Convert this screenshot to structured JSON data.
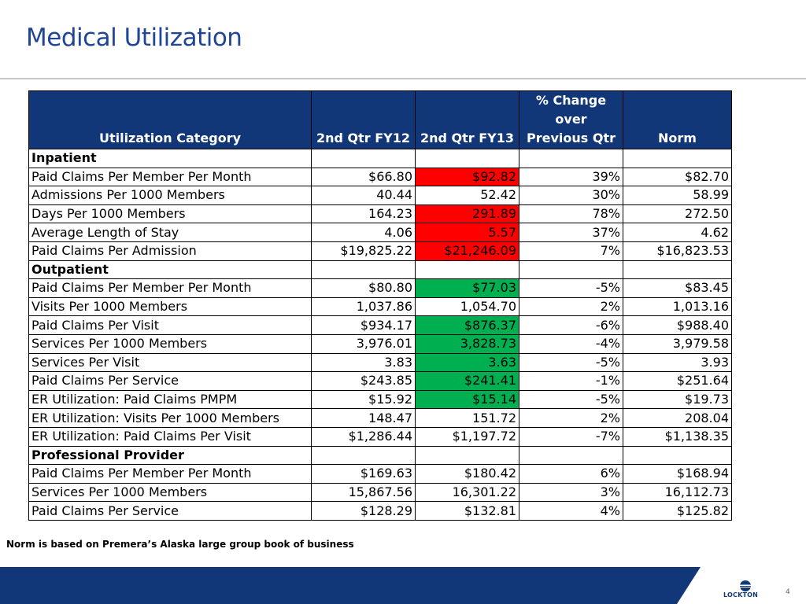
{
  "title": "Medical Utilization",
  "table": {
    "headers": {
      "category": "Utilization Category",
      "q12": "2nd Qtr FY12",
      "q13": "2nd Qtr FY13",
      "change_l1": "% Change",
      "change_l2": "over",
      "change_l3": "Previous Qtr",
      "norm": "Norm"
    },
    "rows": [
      {
        "label": "Inpatient",
        "section": true
      },
      {
        "label": "Paid Claims Per Member Per Month",
        "q12": "$66.80",
        "q13": "$92.82",
        "change": "39%",
        "norm": "$82.70",
        "highlight": "red"
      },
      {
        "label": "Admissions Per 1000 Members",
        "q12": "40.44",
        "q13": "52.42",
        "change": "30%",
        "norm": "58.99",
        "highlight": ""
      },
      {
        "label": "Days Per 1000 Members",
        "q12": "164.23",
        "q13": "291.89",
        "change": "78%",
        "norm": "272.50",
        "highlight": "red"
      },
      {
        "label": "Average Length of Stay",
        "q12": "4.06",
        "q13": "5.57",
        "change": "37%",
        "norm": "4.62",
        "highlight": "red"
      },
      {
        "label": "Paid Claims Per Admission",
        "q12": "$19,825.22",
        "q13": "$21,246.09",
        "change": "7%",
        "norm": "$16,823.53",
        "highlight": "red"
      },
      {
        "label": "Outpatient",
        "section": true
      },
      {
        "label": "Paid Claims Per Member Per Month",
        "q12": "$80.80",
        "q13": "$77.03",
        "change": "-5%",
        "norm": "$83.45",
        "highlight": "green"
      },
      {
        "label": "Visits Per 1000 Members",
        "q12": "1,037.86",
        "q13": "1,054.70",
        "change": "2%",
        "norm": "1,013.16",
        "highlight": ""
      },
      {
        "label": "Paid Claims Per Visit",
        "q12": "$934.17",
        "q13": "$876.37",
        "change": "-6%",
        "norm": "$988.40",
        "highlight": "green"
      },
      {
        "label": "Services Per 1000 Members",
        "q12": "3,976.01",
        "q13": "3,828.73",
        "change": "-4%",
        "norm": "3,979.58",
        "highlight": "green"
      },
      {
        "label": "Services Per Visit",
        "q12": "3.83",
        "q13": "3.63",
        "change": "-5%",
        "norm": "3.93",
        "highlight": "green"
      },
      {
        "label": "Paid Claims Per Service",
        "q12": "$243.85",
        "q13": "$241.41",
        "change": "-1%",
        "norm": "$251.64",
        "highlight": "green"
      },
      {
        "label": "ER Utilization: Paid Claims PMPM",
        "q12": "$15.92",
        "q13": "$15.14",
        "change": "-5%",
        "norm": "$19.73",
        "highlight": "green"
      },
      {
        "label": "ER Utilization: Visits Per 1000 Members",
        "q12": "148.47",
        "q13": "151.72",
        "change": "2%",
        "norm": "208.04",
        "highlight": ""
      },
      {
        "label": "ER Utilization: Paid Claims Per Visit",
        "q12": "$1,286.44",
        "q13": "$1,197.72",
        "change": "-7%",
        "norm": "$1,138.35",
        "highlight": ""
      },
      {
        "label": "Professional Provider",
        "section": true
      },
      {
        "label": "Paid Claims Per Member Per Month",
        "q12": "$169.63",
        "q13": "$180.42",
        "change": "6%",
        "norm": "$168.94",
        "highlight": ""
      },
      {
        "label": "Services Per 1000 Members",
        "q12": "15,867.56",
        "q13": "16,301.22",
        "change": "3%",
        "norm": "16,112.73",
        "highlight": ""
      },
      {
        "label": "Paid Claims Per Service",
        "q12": "$128.29",
        "q13": "$132.81",
        "change": "4%",
        "norm": "$125.82",
        "highlight": ""
      }
    ]
  },
  "note": "Norm is based on Premera’s Alaska large group book of business",
  "footer": {
    "logo_text": "LOCKTON",
    "page_number": "4"
  },
  "colors": {
    "header_bg": "#123778",
    "title": "#1f4597",
    "highlight_red": "#ff0000",
    "highlight_green": "#00b050"
  }
}
